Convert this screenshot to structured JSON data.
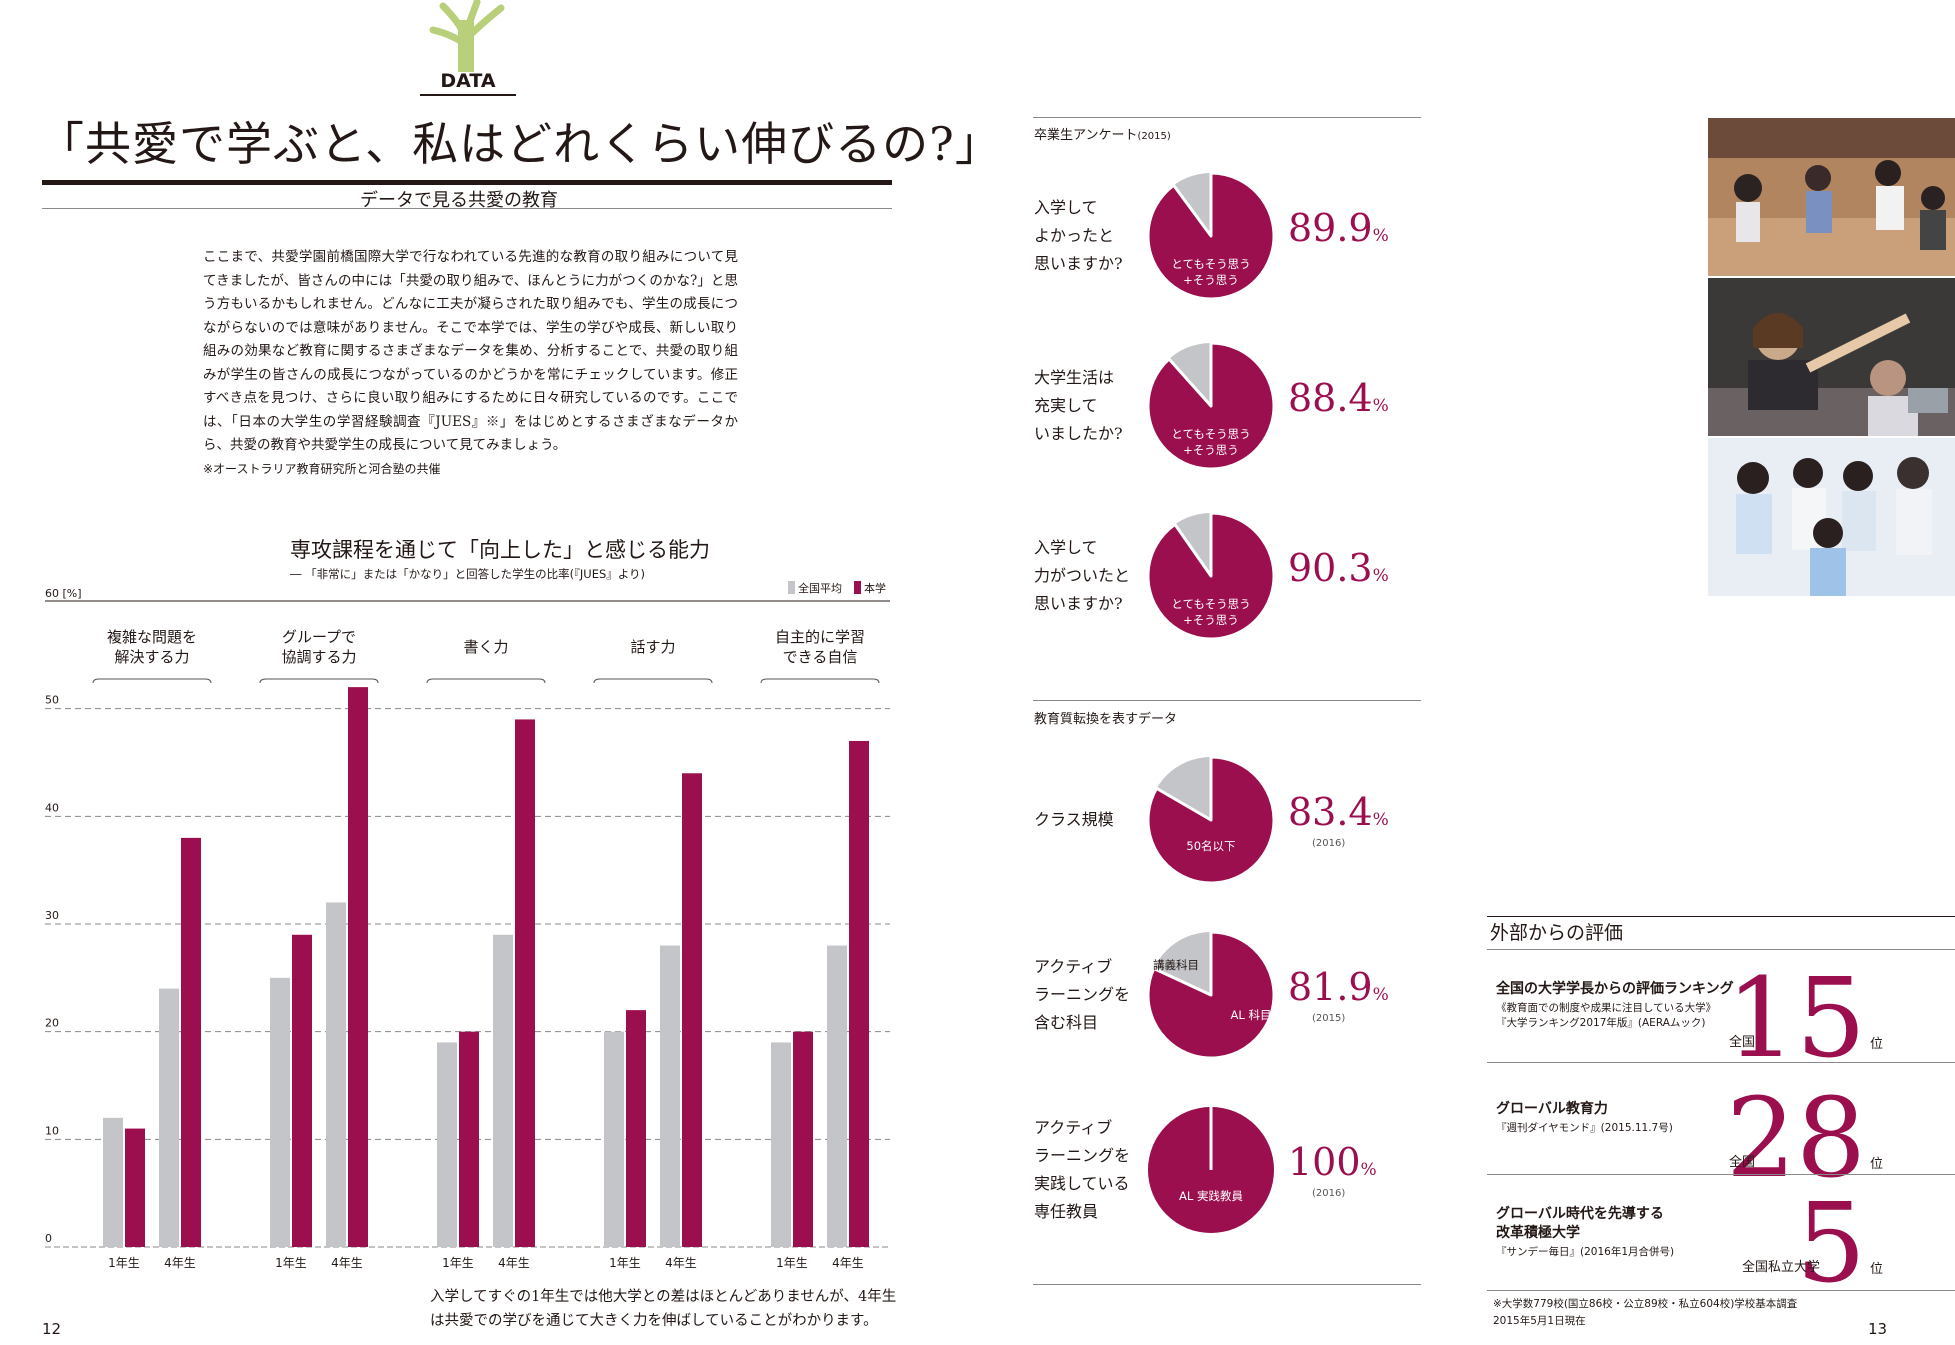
{
  "left_page": {
    "data_tag": "DATA",
    "title": "「共愛で学ぶと、私はどれくらい伸びるの?」",
    "subtitle": "データで見る共愛の教育",
    "intro": "ここまで、共愛学園前橋国際大学で行なわれている先進的な教育の取り組みについて見てきましたが、皆さんの中には「共愛の取り組みで、ほんとうに力がつくのかな?」と思う方もいるかもしれません。どんなに工夫が凝らされた取り組みでも、学生の成長につながらないのでは意味がありません。そこで本学では、学生の学びや成長、新しい取り組みの効果など教育に関するさまざまなデータを集め、分析することで、共愛の取り組みが学生の皆さんの成長につながっているのかどうかを常にチェックしています。修正すべき点を見つけ、さらに良い取り組みにするために日々研究しているのです。ここでは、「日本の大学生の学習経験調査『JUES』※」をはじめとするさまざまなデータから、共愛の教育や共愛学生の成長について見てみましょう。",
    "intro_note": "※オーストラリア教育研究所と河合塾の共催",
    "caption": "入学してすぐの1年生では他大学との差はほとんどありませんが、4年生は共愛での学びを通じて大きく力を伸ばしていることがわかります。",
    "page_number": "12"
  },
  "chart_data": {
    "type": "bar",
    "title": "専攻課程を通じて「向上した」と感じる能力",
    "subtitle": "― 「非常に」または「かなり」と回答した学生の比率(『JUES』より)",
    "ylabel": "60 [%]",
    "ylim": [
      0,
      60
    ],
    "yticks": [
      "0",
      "10",
      "20",
      "30",
      "40",
      "50"
    ],
    "categories": [
      "複雑な問題を\n解決する力",
      "グループで\n協調する力",
      "書く力",
      "話す力",
      "自主的に学習\nできる自信"
    ],
    "sub_labels": [
      "1年生",
      "4年生"
    ],
    "series": [
      {
        "name": "全国平均",
        "color": "#c4c5c9",
        "values": [
          [
            12,
            24
          ],
          [
            25,
            32
          ],
          [
            19,
            29
          ],
          [
            20,
            28
          ],
          [
            19,
            28
          ]
        ]
      },
      {
        "name": "本学",
        "color": "#9b0f4f",
        "values": [
          [
            11,
            38
          ],
          [
            29,
            52
          ],
          [
            20,
            49
          ],
          [
            22,
            44
          ],
          [
            20,
            47
          ]
        ]
      }
    ],
    "grid": true,
    "legend": "top-right"
  },
  "right_page": {
    "survey_title": "卒業生アンケート",
    "survey_year": "(2015)",
    "survey_items": [
      {
        "question": "入学して\nよかったと\n思いますか?",
        "label": "とてもそう思う\n+そう思う",
        "value": 89.9,
        "pct": "89.9",
        "unit": "%",
        "year": ""
      },
      {
        "question": "大学生活は\n充実して\nいましたか?",
        "label": "とてもそう思う\n+そう思う",
        "value": 88.4,
        "pct": "88.4",
        "unit": "%",
        "year": ""
      },
      {
        "question": "入学して\n力がついたと\n思いますか?",
        "label": "とてもそう思う\n+そう思う",
        "value": 90.3,
        "pct": "90.3",
        "unit": "%",
        "year": ""
      }
    ],
    "edu_title": "教育質転換を表すデータ",
    "edu_items": [
      {
        "question": "クラス規模",
        "label": "50名以下",
        "other_label": "",
        "value": 83.4,
        "pct": "83.4",
        "unit": "%",
        "year": "(2016)"
      },
      {
        "question": "アクティブ\nラーニングを\n含む科目",
        "label": "AL 科目",
        "other_label": "講義科目",
        "value": 81.9,
        "pct": "81.9",
        "unit": "%",
        "year": "(2015)"
      },
      {
        "question": "アクティブ\nラーニングを\n実践している\n専任教員",
        "label": "AL 実践教員",
        "other_label": "",
        "value": 100,
        "pct": "100",
        "unit": "%",
        "year": "(2016)"
      }
    ],
    "eval_title": "外部からの評価",
    "eval_items": [
      {
        "title": "全国の大学学長からの評価ランキング",
        "sub": "《教育面での制度や成果に注目している大学》\n『大学ランキング2017年版』(AERAムック)",
        "prefix": "全国",
        "rank": "15",
        "unit": "位"
      },
      {
        "title": "グローバル教育力",
        "sub": "『週刊ダイヤモンド』(2015.11.7号)",
        "prefix": "全国",
        "rank": "28",
        "unit": "位"
      },
      {
        "title": "グローバル時代を先導する\n改革積極大学",
        "sub": "『サンデー毎日』(2016年1月合併号)",
        "prefix": "全国私立大学",
        "rank": "5",
        "unit": "位"
      }
    ],
    "eval_note": "※大学数779校(国立86校・公立89校・私立604校)学校基本調査\n2015年5月1日現在",
    "page_number": "13"
  },
  "colors": {
    "accent": "#9b0f4f",
    "gray": "#c4c5c9",
    "leaf": "#b9cf7a"
  }
}
